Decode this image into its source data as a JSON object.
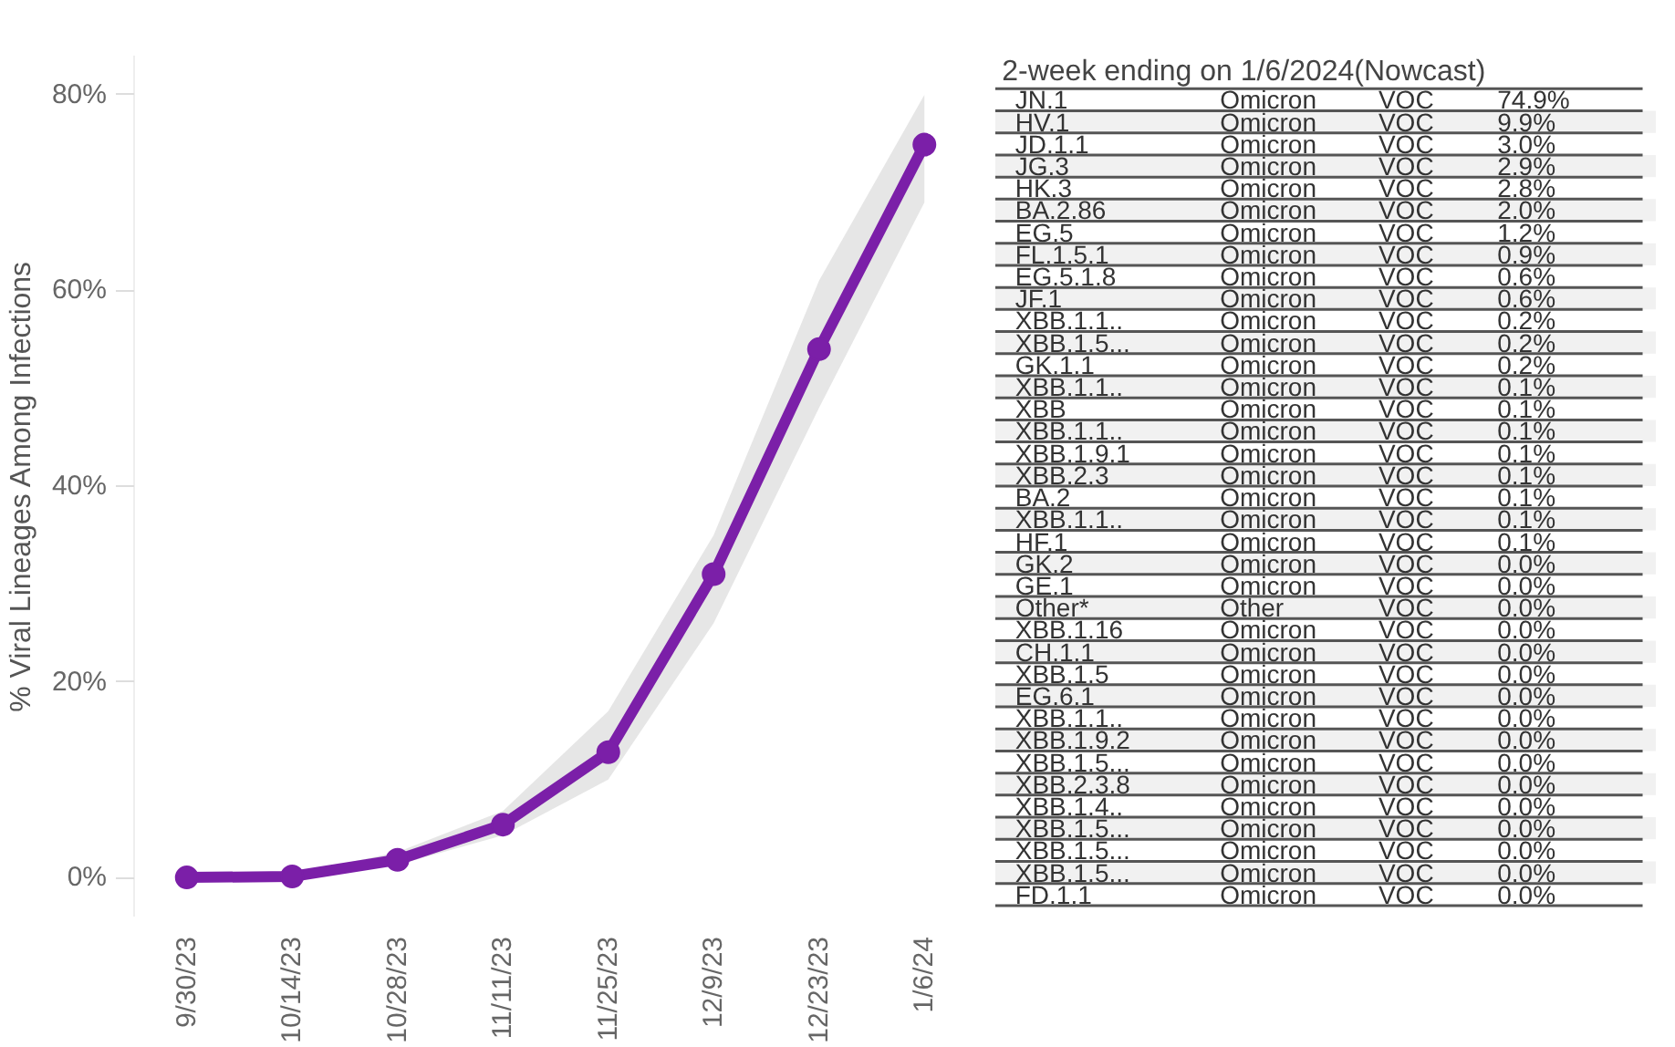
{
  "chart_data": [
    {
      "type": "line",
      "ylabel": "% Viral Lineages Among Infections",
      "categories": [
        "9/30/23",
        "10/14/23",
        "10/28/23",
        "11/11/23",
        "11/25/23",
        "12/9/23",
        "12/23/23",
        "1/6/24"
      ],
      "series": [
        {
          "color": "#7b1fa8",
          "values": [
            0,
            0.1,
            1.8,
            5.4,
            12.8,
            31,
            54,
            74.9
          ],
          "lower": [
            0,
            0,
            1.3,
            4.3,
            10,
            26,
            48,
            69
          ],
          "upper": [
            0.1,
            0.3,
            2.6,
            6.8,
            17,
            35,
            61,
            80
          ]
        }
      ],
      "ylim": [
        -4,
        84
      ],
      "yticks": [
        {
          "value": 0,
          "label": "0%"
        },
        {
          "value": 20,
          "label": "20%"
        },
        {
          "value": 40,
          "label": "40%"
        },
        {
          "value": 60,
          "label": "60%"
        },
        {
          "value": 80,
          "label": "80%"
        }
      ],
      "grid": false,
      "marker": "circle",
      "line_style": "solid"
    },
    {
      "type": "other",
      "title": "2-week ending on 1/6/2024(Nowcast)",
      "y_categories": [
        "JN.1",
        "HV.1",
        "JD.1.1",
        "JG.3",
        "HK.3",
        "BA.2.86",
        "EG.5",
        "FL.1.5.1",
        "EG.5.1.8",
        "JF.1",
        "XBB.1.1..",
        "XBB.1.5...",
        "GK.1.1",
        "XBB.1.1..",
        "XBB",
        "XBB.1.1..",
        "XBB.1.9.1",
        "XBB.2.3",
        "BA.2",
        "XBB.1.1..",
        "HF.1",
        "GK.2",
        "GE.1",
        "Other*",
        "XBB.1.16",
        "CH.1.1",
        "XBB.1.5",
        "EG.6.1",
        "XBB.1.1..",
        "XBB.1.9.2",
        "XBB.1.5...",
        "XBB.2.3.8",
        "XBB.1.4..",
        "XBB.1.5...",
        "XBB.1.5...",
        "XBB.1.5...",
        "FD.1.1"
      ],
      "cell_labels": [
        [
          "Omicron",
          "VOC",
          "74.9%"
        ],
        [
          "Omicron",
          "VOC",
          "9.9%"
        ],
        [
          "Omicron",
          "VOC",
          "3.0%"
        ],
        [
          "Omicron",
          "VOC",
          "2.9%"
        ],
        [
          "Omicron",
          "VOC",
          "2.8%"
        ],
        [
          "Omicron",
          "VOC",
          "2.0%"
        ],
        [
          "Omicron",
          "VOC",
          "1.2%"
        ],
        [
          "Omicron",
          "VOC",
          "0.9%"
        ],
        [
          "Omicron",
          "VOC",
          "0.6%"
        ],
        [
          "Omicron",
          "VOC",
          "0.6%"
        ],
        [
          "Omicron",
          "VOC",
          "0.2%"
        ],
        [
          "Omicron",
          "VOC",
          "0.2%"
        ],
        [
          "Omicron",
          "VOC",
          "0.2%"
        ],
        [
          "Omicron",
          "VOC",
          "0.1%"
        ],
        [
          "Omicron",
          "VOC",
          "0.1%"
        ],
        [
          "Omicron",
          "VOC",
          "0.1%"
        ],
        [
          "Omicron",
          "VOC",
          "0.1%"
        ],
        [
          "Omicron",
          "VOC",
          "0.1%"
        ],
        [
          "Omicron",
          "VOC",
          "0.1%"
        ],
        [
          "Omicron",
          "VOC",
          "0.1%"
        ],
        [
          "Omicron",
          "VOC",
          "0.1%"
        ],
        [
          "Omicron",
          "VOC",
          "0.0%"
        ],
        [
          "Omicron",
          "VOC",
          "0.0%"
        ],
        [
          "Other",
          "VOC",
          "0.0%"
        ],
        [
          "Omicron",
          "VOC",
          "0.0%"
        ],
        [
          "Omicron",
          "VOC",
          "0.0%"
        ],
        [
          "Omicron",
          "VOC",
          "0.0%"
        ],
        [
          "Omicron",
          "VOC",
          "0.0%"
        ],
        [
          "Omicron",
          "VOC",
          "0.0%"
        ],
        [
          "Omicron",
          "VOC",
          "0.0%"
        ],
        [
          "Omicron",
          "VOC",
          "0.0%"
        ],
        [
          "Omicron",
          "VOC",
          "0.0%"
        ],
        [
          "Omicron",
          "VOC",
          "0.0%"
        ],
        [
          "Omicron",
          "VOC",
          "0.0%"
        ],
        [
          "Omicron",
          "VOC",
          "0.0%"
        ],
        [
          "Omicron",
          "VOC",
          "0.0%"
        ],
        [
          "Omicron",
          "VOC",
          "0.0%"
        ]
      ]
    }
  ]
}
